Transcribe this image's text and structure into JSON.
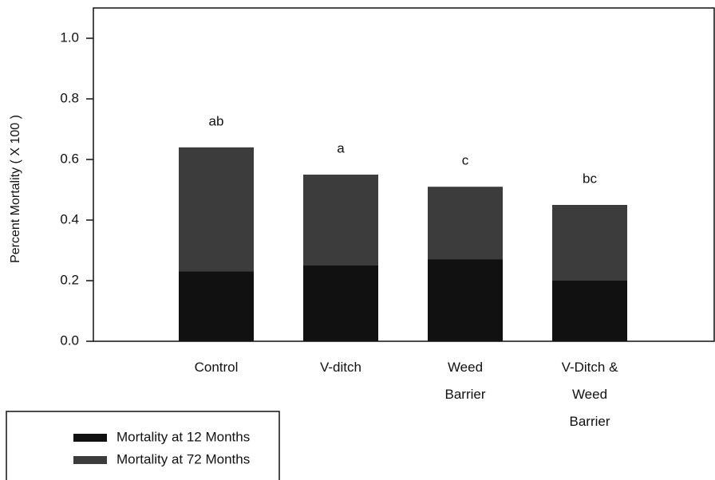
{
  "chart_data": {
    "type": "bar",
    "ylabel": "Percent Mortality ( X 100 )",
    "categories": [
      "Control",
      "V-ditch",
      "Weed\nBarrier",
      "V-Ditch &\nWeed\nBarrier"
    ],
    "series": [
      {
        "name": "Mortality at 72 Months",
        "color": "#3c3c3c",
        "values": [
          0.64,
          0.55,
          0.51,
          0.45
        ]
      },
      {
        "name": "Mortality at 12 Months",
        "color": "#111111",
        "values": [
          0.23,
          0.25,
          0.27,
          0.2
        ]
      }
    ],
    "annotations": [
      "ab",
      "a",
      "c",
      "bc"
    ],
    "ylim": [
      0,
      1.1
    ],
    "yticks": [
      {
        "value": 0,
        "label": "0.0"
      },
      0.2,
      0.4,
      0.6,
      0.8,
      {
        "value": 1,
        "label": "1.0"
      }
    ]
  }
}
